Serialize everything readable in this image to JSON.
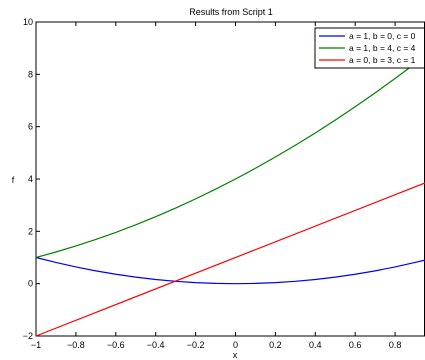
{
  "chart_data": {
    "type": "line",
    "title": "Results from Script 1",
    "xlabel": "x",
    "ylabel": "f",
    "xlim": [
      -1,
      0.95
    ],
    "ylim": [
      -2,
      10
    ],
    "xticks": [
      -1,
      -0.8,
      -0.6,
      -0.4,
      -0.2,
      0,
      0.2,
      0.4,
      0.6,
      0.8
    ],
    "xtick_labels": [
      "−1",
      "−0.8",
      "−0.6",
      "−0.4",
      "−0.2",
      "0",
      "0.2",
      "0.4",
      "0.6",
      "0.8"
    ],
    "yticks": [
      -2,
      0,
      2,
      4,
      6,
      8,
      10
    ],
    "ytick_labels": [
      "−2",
      "0",
      "2",
      "4",
      "6",
      "8",
      "10"
    ],
    "grid": false,
    "legend_position": "top-right",
    "series": [
      {
        "name": "a = 1, b = 0, c = 0",
        "color": "#0000ff",
        "x": [
          -1,
          -0.9,
          -0.8,
          -0.7,
          -0.6,
          -0.5,
          -0.4,
          -0.3,
          -0.2,
          -0.1,
          0,
          0.1,
          0.2,
          0.3,
          0.4,
          0.5,
          0.6,
          0.7,
          0.8,
          0.9,
          0.95
        ],
        "y": [
          1,
          0.81,
          0.64,
          0.49,
          0.36,
          0.25,
          0.16,
          0.09,
          0.04,
          0.01,
          0,
          0.01,
          0.04,
          0.09,
          0.16,
          0.25,
          0.36,
          0.49,
          0.64,
          0.81,
          0.9
        ]
      },
      {
        "name": "a = 1, b = 4, c = 4",
        "color": "#008000",
        "x": [
          -1,
          -0.9,
          -0.8,
          -0.7,
          -0.6,
          -0.5,
          -0.4,
          -0.3,
          -0.2,
          -0.1,
          0,
          0.1,
          0.2,
          0.3,
          0.4,
          0.5,
          0.6,
          0.7,
          0.8,
          0.9,
          0.95
        ],
        "y": [
          1,
          1.21,
          1.44,
          1.69,
          1.96,
          2.25,
          2.56,
          2.89,
          3.24,
          3.61,
          4,
          4.41,
          4.84,
          5.29,
          5.76,
          6.25,
          6.76,
          7.29,
          7.84,
          8.41,
          8.7
        ]
      },
      {
        "name": "a = 0, b = 3, c = 1",
        "color": "#ff0000",
        "x": [
          -1,
          0.95
        ],
        "y": [
          -2,
          3.85
        ]
      }
    ]
  }
}
